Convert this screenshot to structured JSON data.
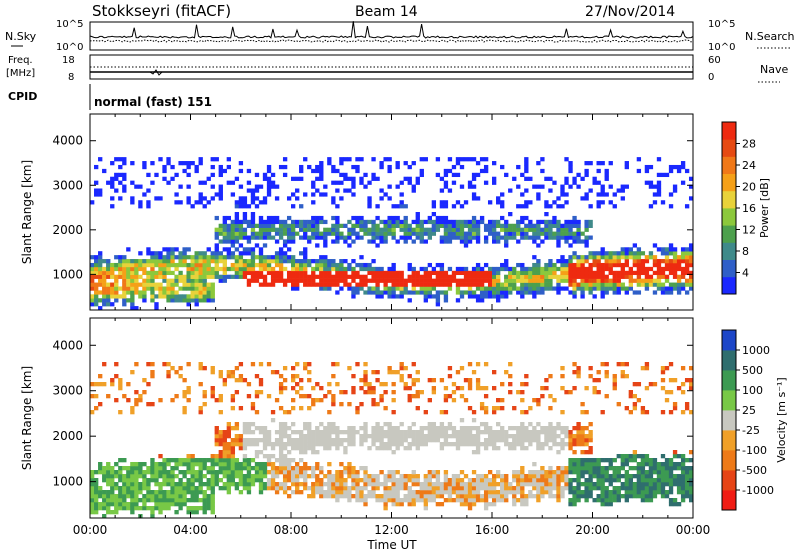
{
  "header": {
    "station": "Stokkseyri (fitACF)",
    "beam": "Beam 14",
    "date": "27/Nov/2014"
  },
  "top_panels": {
    "nsky_label": "N.Sky",
    "nsky_ticks": [
      "10^5",
      "10^0"
    ],
    "nsearch_label": "N.Search",
    "nsearch_ticks": [
      "10^5",
      "10^0"
    ],
    "freq_label": "Freq.",
    "freq_unit": "[MHz]",
    "freq_ticks": [
      "18",
      "8"
    ],
    "nave_label": "Nave",
    "nave_ticks": [
      "60",
      "0"
    ],
    "cpid_label": "CPID",
    "cpid_value": "normal (fast) 151"
  },
  "chart_data": [
    {
      "type": "heatmap",
      "name": "power",
      "xlabel": "",
      "ylabel": "Slant Range [km]",
      "xlim": [
        0,
        24
      ],
      "ylim": [
        200,
        4600
      ],
      "yticks": [
        "1000",
        "2000",
        "3000",
        "4000"
      ],
      "colorbar_label": "Power [dB]",
      "colorbar_ticks": [
        "4",
        "8",
        "12",
        "16",
        "20",
        "24",
        "28"
      ],
      "colorbar_colors": [
        "#1a28ff",
        "#2f5fc8",
        "#3f8a8a",
        "#4da04d",
        "#8cc83c",
        "#e8d23a",
        "#f5a018",
        "#f07818",
        "#e64a12",
        "#ee2a10"
      ]
    },
    {
      "type": "heatmap",
      "name": "velocity",
      "xlabel": "Time UT",
      "ylabel": "Slant Range [km]",
      "xlim": [
        0,
        24
      ],
      "ylim": [
        200,
        4600
      ],
      "xticks": [
        "00:00",
        "04:00",
        "08:00",
        "12:00",
        "16:00",
        "20:00",
        "00:00"
      ],
      "yticks": [
        "1000",
        "2000",
        "3000",
        "4000"
      ],
      "colorbar_label": "Velocity [m s⁻¹]",
      "colorbar_ticks": [
        "1000",
        "500",
        "100",
        "25",
        "-25",
        "-100",
        "-500",
        "-1000"
      ],
      "colorbar_colors": [
        "#1c46c8",
        "#2f6e6e",
        "#3c9a52",
        "#78c846",
        "#c8c8c0",
        "#f0a028",
        "#ee7a18",
        "#e64416",
        "#f01c14"
      ]
    }
  ]
}
